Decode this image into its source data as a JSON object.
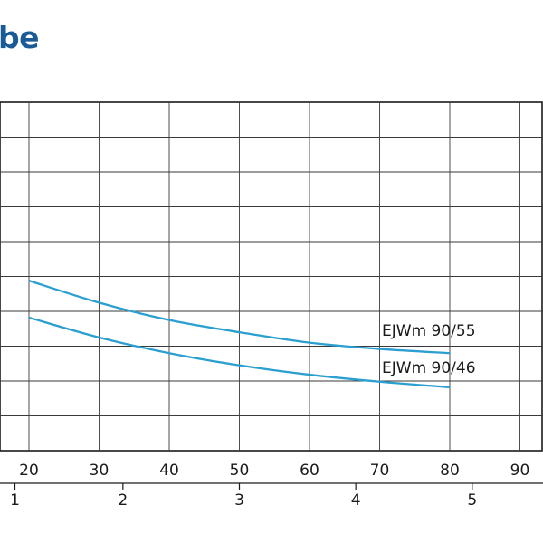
{
  "title": "be",
  "chart_data": {
    "type": "line",
    "title": "be",
    "x": [
      20,
      30,
      40,
      50,
      60,
      70,
      80
    ],
    "xlim": [
      16,
      94
    ],
    "x_ticks": [
      20,
      30,
      40,
      50,
      60,
      70,
      80,
      90
    ],
    "secondary_x_ticks": [
      {
        "label": "1",
        "value": 18
      },
      {
        "label": "2",
        "value": 33.4
      },
      {
        "label": "3",
        "value": 50
      },
      {
        "label": "4",
        "value": 66.6
      },
      {
        "label": "5",
        "value": 83.2
      }
    ],
    "ylim": [
      0,
      10
    ],
    "grid": true,
    "series": [
      {
        "name": "EJWm 90/55",
        "color": "#2a9fd0",
        "values": [
          4.88,
          4.25,
          3.75,
          3.4,
          3.1,
          2.92,
          2.8
        ]
      },
      {
        "name": "EJWm 90/46",
        "color": "#2a9fd0",
        "values": [
          3.82,
          3.25,
          2.8,
          2.45,
          2.18,
          1.98,
          1.82
        ]
      }
    ]
  }
}
